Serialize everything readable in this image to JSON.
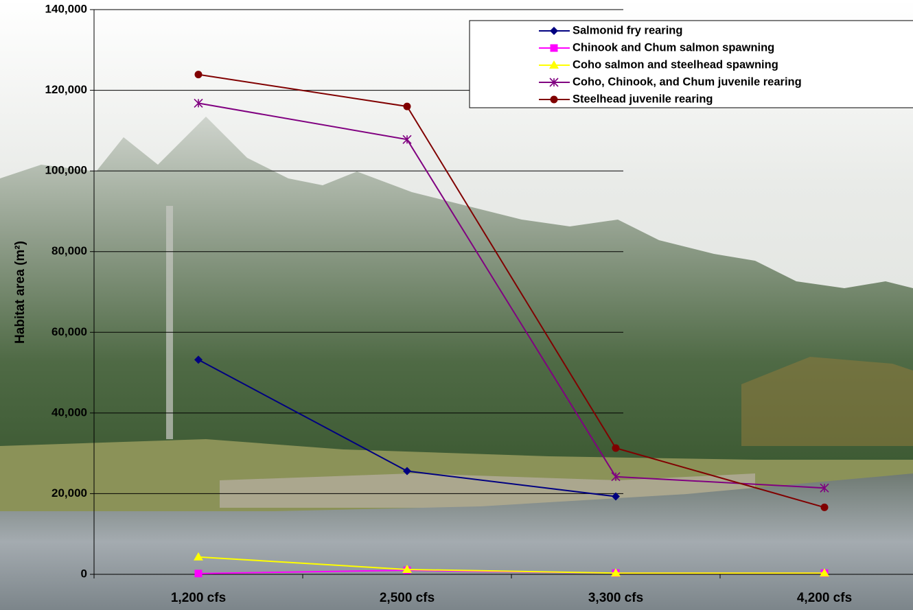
{
  "chart_data": {
    "type": "line",
    "y_label": "Habitat area (m²)",
    "categories": [
      "1,200 cfs",
      "2,500 cfs",
      "3,300 cfs",
      "4,200 cfs"
    ],
    "series": [
      {
        "name": "Salmonid fry rearing",
        "color": "#000080",
        "marker": "diamond",
        "values": [
          53200,
          25600,
          19300,
          null
        ]
      },
      {
        "name": "Chinook and Chum salmon spawning",
        "color": "#ff00ff",
        "marker": "square",
        "values": [
          200,
          1000,
          300,
          300
        ]
      },
      {
        "name": "Coho salmon and steelhead  spawning",
        "color": "#ffff00",
        "marker": "triangle",
        "values": [
          4300,
          1200,
          300,
          300
        ]
      },
      {
        "name": "Coho, Chinook, and Chum juvenile rearing",
        "color": "#800080",
        "marker": "asterisk",
        "values": [
          116800,
          107800,
          24200,
          21400
        ]
      },
      {
        "name": "Steelhead juvenile rearing",
        "color": "#800000",
        "marker": "circle",
        "values": [
          123900,
          116000,
          31300,
          16600
        ]
      }
    ],
    "ylim": [
      0,
      140000
    ],
    "yticks": [
      0,
      {
        "value": 20000,
        "label": "20,000"
      },
      {
        "value": 40000,
        "label": "40,000"
      },
      {
        "value": 60000,
        "label": "60,000"
      },
      {
        "value": 80000,
        "label": "80,000"
      },
      {
        "value": 100000,
        "label": "100,000"
      },
      {
        "value": 120000,
        "label": "120,000"
      },
      {
        "value": 140000,
        "label": "140,000"
      }
    ],
    "grid": true
  }
}
